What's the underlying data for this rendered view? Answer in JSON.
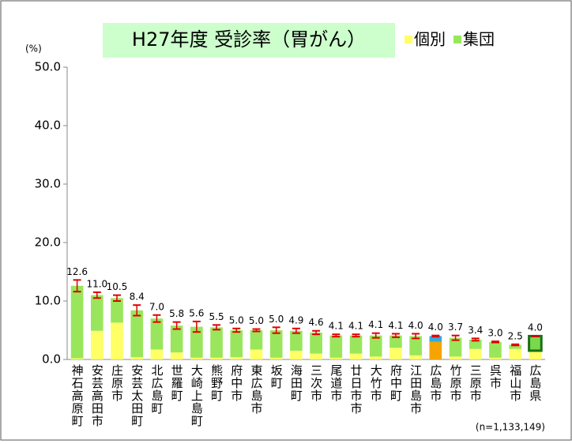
{
  "chart_data": {
    "type": "stacked_bar",
    "title": "H27年度 受診率（胃がん）",
    "y_unit": "(%)",
    "note": "(n=1,133,149)",
    "categories": [
      "神石高原町",
      "安芸高田市",
      "庄原市",
      "安芸太田町",
      "北広島町",
      "世羅町",
      "大崎上島町",
      "熊野町",
      "府中市",
      "東広島市",
      "坂町",
      "海田町",
      "三次市",
      "尾道市",
      "廿日市市",
      "大竹市",
      "府中町",
      "江田島市",
      "広島市",
      "竹原市",
      "三原市",
      "呉市",
      "福山市",
      "広島県"
    ],
    "series": [
      {
        "name": "個別",
        "color": "#ffff66",
        "colors": [
          "#ffff66",
          "#ffff66",
          "#ffff66",
          "#ffff66",
          "#ffff66",
          "#ffff66",
          "#ffff66",
          "#ffff66",
          "#ffff66",
          "#ffff66",
          "#ffff66",
          "#ffff66",
          "#ffff66",
          "#ffff66",
          "#ffff66",
          "#ffff66",
          "#ffff66",
          "#ffff66",
          "#f5a400",
          "#ffff66",
          "#ffff66",
          "#ffff66",
          "#ffff66",
          "#ffff66"
        ],
        "values": [
          0.2,
          4.9,
          6.3,
          0.4,
          1.7,
          1.2,
          0.3,
          0.3,
          0.4,
          1.7,
          0.3,
          1.5,
          1.0,
          0.3,
          1.0,
          0.5,
          2.0,
          0.7,
          3.0,
          0.5,
          1.8,
          0.3,
          1.8,
          1.5
        ]
      },
      {
        "name": "集団",
        "color": "#99e65c",
        "colors": [
          "#99e65c",
          "#99e65c",
          "#99e65c",
          "#99e65c",
          "#99e65c",
          "#99e65c",
          "#99e65c",
          "#99e65c",
          "#99e65c",
          "#99e65c",
          "#99e65c",
          "#99e65c",
          "#99e65c",
          "#99e65c",
          "#99e65c",
          "#99e65c",
          "#99e65c",
          "#99e65c",
          "#33aadd",
          "#99e65c",
          "#99e65c",
          "#99e65c",
          "#99e65c",
          "#2e9e2e"
        ],
        "values": [
          12.4,
          6.1,
          4.2,
          8.0,
          5.3,
          4.6,
          5.3,
          5.2,
          4.6,
          3.3,
          4.7,
          3.4,
          3.6,
          3.8,
          3.1,
          3.6,
          2.1,
          3.3,
          1.0,
          3.2,
          1.6,
          2.7,
          0.7,
          2.5
        ]
      }
    ],
    "totals": [
      12.6,
      11.0,
      10.5,
      8.4,
      7.0,
      5.8,
      5.6,
      5.5,
      5.0,
      5.0,
      5.0,
      4.9,
      4.6,
      4.1,
      4.1,
      4.1,
      4.1,
      4.0,
      4.0,
      3.7,
      3.4,
      3.0,
      2.5,
      4.0
    ],
    "total_labels": [
      "12.6",
      "11.0",
      "10.5",
      "8.4",
      "7.0",
      "5.8",
      "5.6",
      "5.5",
      "5.0",
      "5.0",
      "5.0",
      "4.9",
      "4.6",
      "4.1",
      "4.1",
      "4.1",
      "4.1",
      "4.0",
      "4.0",
      "3.7",
      "3.4",
      "3.0",
      "2.5",
      "4.0"
    ],
    "errors": [
      1.0,
      0.5,
      0.5,
      0.9,
      0.6,
      0.6,
      0.9,
      0.4,
      0.3,
      0.2,
      0.5,
      0.4,
      0.3,
      0.2,
      0.2,
      0.4,
      0.3,
      0.4,
      0.1,
      0.4,
      0.2,
      0.1,
      0.1,
      0.05
    ],
    "error_color": "#e00000",
    "ylim": [
      0,
      50
    ],
    "yticks": [
      {
        "value": 0,
        "label": "0.0"
      },
      {
        "value": 10,
        "label": "10.0"
      },
      {
        "value": 20,
        "label": "20.0"
      },
      {
        "value": 30,
        "label": "30.0"
      },
      {
        "value": 40,
        "label": "40.0"
      },
      {
        "value": 50,
        "label": "50.0"
      }
    ],
    "grid": false
  }
}
